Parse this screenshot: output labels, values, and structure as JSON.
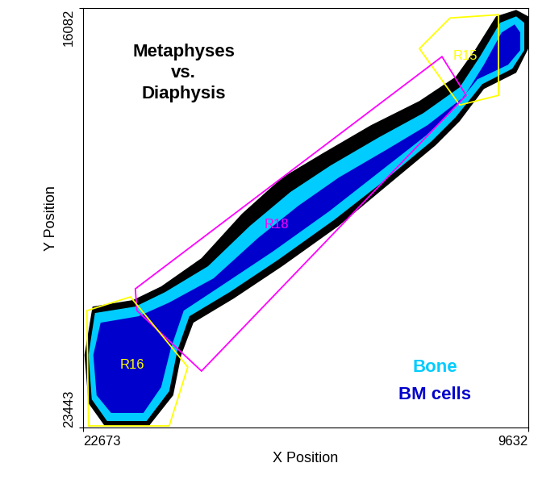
{
  "chart_data": {
    "type": "polygon",
    "title": "Metaphyses\nvs.\nDiaphysis",
    "x_label": "X Position",
    "y_label": "Y Position",
    "xlim": [
      22673,
      9632
    ],
    "xticks": [
      22673,
      9632
    ],
    "ylim": [
      23443,
      16082
    ],
    "yticks": [
      16082,
      23443
    ],
    "series": [
      {
        "color": "#000000",
        "points": [
          [
            22390,
            21320
          ],
          [
            21208,
            21206
          ],
          [
            20381,
            20966
          ],
          [
            19200,
            20470
          ],
          [
            18019,
            19692
          ],
          [
            16838,
            19055
          ],
          [
            15656,
            18630
          ],
          [
            14239,
            18135
          ],
          [
            12821,
            17710
          ],
          [
            11758,
            17285
          ],
          [
            11168,
            16790
          ],
          [
            10577,
            16224
          ],
          [
            9987,
            16110
          ],
          [
            9632,
            16224
          ],
          [
            9632,
            16790
          ],
          [
            9987,
            17214
          ],
          [
            10931,
            17498
          ],
          [
            11640,
            18064
          ],
          [
            12349,
            18490
          ],
          [
            13766,
            19196
          ],
          [
            15184,
            19904
          ],
          [
            16838,
            20612
          ],
          [
            18255,
            21178
          ],
          [
            19436,
            21603
          ],
          [
            19791,
            22169
          ],
          [
            20027,
            22877
          ],
          [
            20736,
            23415
          ],
          [
            22035,
            23415
          ],
          [
            22508,
            23018
          ],
          [
            22626,
            22169
          ]
        ]
      },
      {
        "name": "Bone",
        "color": "#00CCFF",
        "points": [
          [
            22319,
            21433
          ],
          [
            21137,
            21320
          ],
          [
            20263,
            21065
          ],
          [
            19011,
            20612
          ],
          [
            17783,
            19904
          ],
          [
            16601,
            19310
          ],
          [
            15420,
            18842
          ],
          [
            14003,
            18347
          ],
          [
            12703,
            17922
          ],
          [
            11640,
            17469
          ],
          [
            11049,
            16931
          ],
          [
            10459,
            16337
          ],
          [
            9987,
            16224
          ],
          [
            9750,
            16337
          ],
          [
            9750,
            16818
          ],
          [
            10104,
            17144
          ],
          [
            10979,
            17413
          ],
          [
            11758,
            17993
          ],
          [
            12467,
            18418
          ],
          [
            13884,
            19126
          ],
          [
            15302,
            19791
          ],
          [
            16956,
            20499
          ],
          [
            18373,
            21065
          ],
          [
            19554,
            21490
          ],
          [
            19909,
            22098
          ],
          [
            20145,
            22806
          ],
          [
            20807,
            23330
          ],
          [
            21964,
            23330
          ],
          [
            22413,
            22948
          ],
          [
            22508,
            22169
          ]
        ]
      },
      {
        "name": "BM cells",
        "color": "#0000CC",
        "points": [
          [
            22153,
            21603
          ],
          [
            21043,
            21490
          ],
          [
            20145,
            21249
          ],
          [
            18846,
            20824
          ],
          [
            17546,
            20116
          ],
          [
            16365,
            19550
          ],
          [
            15184,
            19055
          ],
          [
            13766,
            18559
          ],
          [
            12585,
            18135
          ],
          [
            11522,
            17639
          ],
          [
            10931,
            17073
          ],
          [
            10412,
            16507
          ],
          [
            10034,
            16365
          ],
          [
            9868,
            16507
          ],
          [
            9868,
            16818
          ],
          [
            10223,
            17073
          ],
          [
            11120,
            17328
          ],
          [
            11924,
            17922
          ],
          [
            12632,
            18319
          ],
          [
            14050,
            18984
          ],
          [
            15467,
            19649
          ],
          [
            17121,
            20357
          ],
          [
            18539,
            20923
          ],
          [
            19720,
            21391
          ],
          [
            20098,
            22056
          ],
          [
            20381,
            22735
          ],
          [
            20901,
            23188
          ],
          [
            21846,
            23188
          ],
          [
            22271,
            22877
          ],
          [
            22366,
            22169
          ]
        ]
      }
    ],
    "gates": [
      {
        "name": "R15",
        "color": "#FFFF00",
        "points": [
          [
            12821,
            16790
          ],
          [
            11924,
            16252
          ],
          [
            10506,
            16195
          ],
          [
            10506,
            17611
          ],
          [
            11640,
            17781
          ]
        ]
      },
      {
        "name": "R18",
        "color": "#FF00FF",
        "points": [
          [
            21137,
            21008
          ],
          [
            12160,
            16931
          ],
          [
            11451,
            17611
          ],
          [
            19200,
            22452
          ],
          [
            21090,
            21391
          ]
        ]
      },
      {
        "name": "R16",
        "color": "#FFFF00",
        "points": [
          [
            22555,
            21391
          ],
          [
            21279,
            21150
          ],
          [
            19602,
            22381
          ],
          [
            20145,
            23415
          ],
          [
            22508,
            23415
          ]
        ]
      }
    ]
  }
}
